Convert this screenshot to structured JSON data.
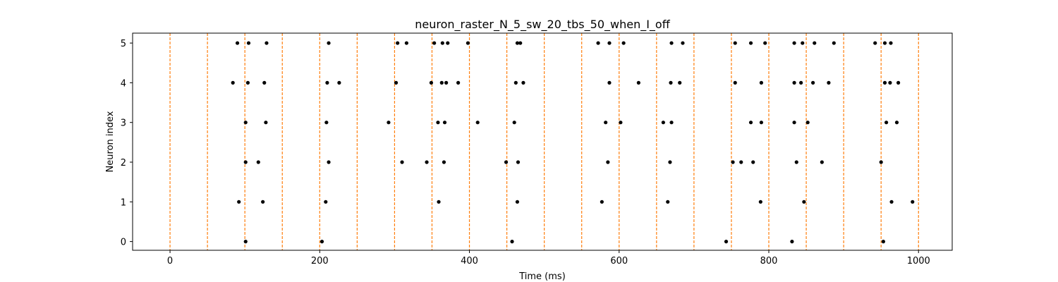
{
  "chart_data": {
    "type": "scatter",
    "title": "neuron_raster_N_5_sw_20_tbs_50_when_I_off",
    "xlabel": "Time (ms)",
    "ylabel": "Neuron index",
    "xlim": [
      -50,
      1045
    ],
    "ylim": [
      -0.22,
      5.25
    ],
    "xticks": [
      0,
      200,
      400,
      600,
      800,
      1000
    ],
    "yticks": [
      0,
      1,
      2,
      3,
      4,
      5
    ],
    "grid": false,
    "marker_color": "#000000",
    "boundary_color": "#ff7f0e",
    "boundaries": [
      0,
      50,
      100,
      150,
      200,
      250,
      300,
      350,
      400,
      450,
      500,
      550,
      600,
      650,
      700,
      750,
      800,
      850,
      900,
      950,
      1000
    ],
    "series": [
      {
        "neuron": 5,
        "x": [
          90,
          105,
          129,
          212,
          304,
          316,
          353,
          364,
          371,
          398,
          464,
          468,
          572,
          587,
          606,
          670,
          685,
          755,
          776,
          795,
          834,
          845,
          861,
          887,
          942,
          955,
          963
        ]
      },
      {
        "neuron": 4,
        "x": [
          84,
          104,
          126,
          210,
          226,
          302,
          349,
          363,
          369,
          385,
          462,
          472,
          587,
          626,
          669,
          681,
          755,
          790,
          834,
          843,
          859,
          880,
          955,
          962,
          973
        ]
      },
      {
        "neuron": 3,
        "x": [
          101,
          128,
          209,
          292,
          358,
          367,
          411,
          460,
          582,
          602,
          659,
          670,
          776,
          790,
          834,
          852,
          957,
          971
        ]
      },
      {
        "neuron": 2,
        "x": [
          101,
          118,
          212,
          310,
          343,
          366,
          449,
          465,
          585,
          668,
          752,
          763,
          779,
          837,
          871,
          950
        ]
      },
      {
        "neuron": 1,
        "x": [
          92,
          124,
          208,
          359,
          464,
          577,
          665,
          789,
          847,
          964,
          992
        ]
      },
      {
        "neuron": 0,
        "x": [
          101,
          203,
          457,
          743,
          831,
          953
        ]
      }
    ]
  }
}
